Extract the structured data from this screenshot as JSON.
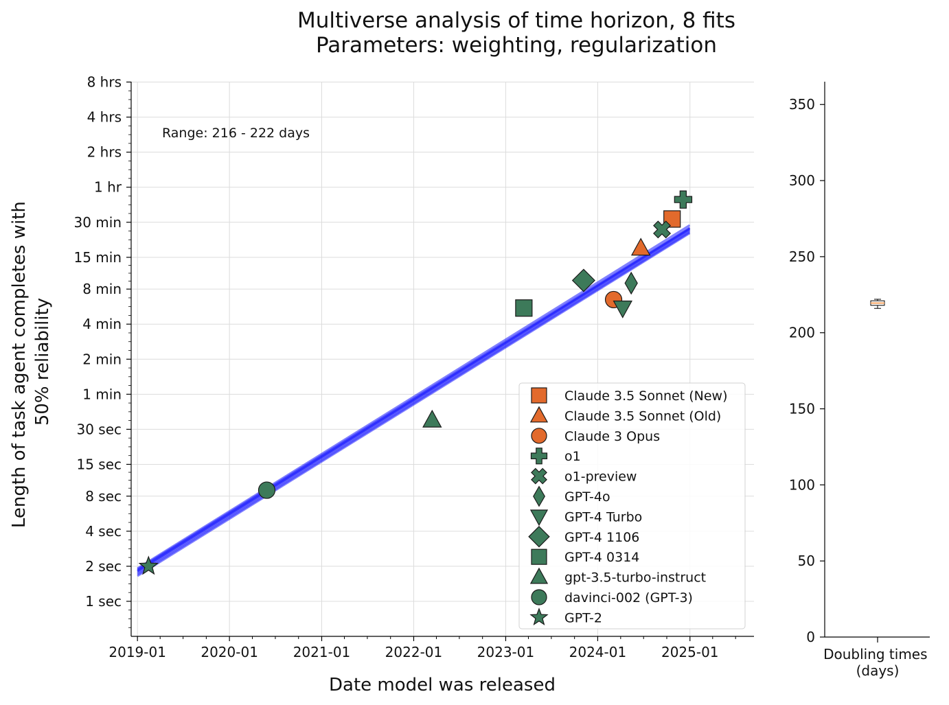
{
  "chart_data": [
    {
      "type": "scatter",
      "title": "Multiverse analysis of time horizon, 8 fits",
      "subtitle": "Parameters: weighting, regularization",
      "xlabel": "Date model was released",
      "ylabel": "Length of task agent completes with 50% reliability",
      "y_scale": "log",
      "grid": true,
      "legend_position": "bottom-right",
      "annotation": "Range: 216 - 222 days",
      "x_ticks": [
        "2019-01",
        "2020-01",
        "2021-01",
        "2022-01",
        "2023-01",
        "2024-01",
        "2025-01"
      ],
      "y_ticks": [
        {
          "label": "1 sec",
          "seconds": 1
        },
        {
          "label": "2 sec",
          "seconds": 2
        },
        {
          "label": "4 sec",
          "seconds": 4
        },
        {
          "label": "8 sec",
          "seconds": 8
        },
        {
          "label": "15 sec",
          "seconds": 15
        },
        {
          "label": "30 sec",
          "seconds": 30
        },
        {
          "label": "1 min",
          "seconds": 60
        },
        {
          "label": "2 min",
          "seconds": 120
        },
        {
          "label": "4 min",
          "seconds": 240
        },
        {
          "label": "8 min",
          "seconds": 480
        },
        {
          "label": "15 min",
          "seconds": 900
        },
        {
          "label": "30 min",
          "seconds": 1800
        },
        {
          "label": "1 hr",
          "seconds": 3600
        },
        {
          "label": "2 hrs",
          "seconds": 7200
        },
        {
          "label": "4 hrs",
          "seconds": 14400
        },
        {
          "label": "8 hrs",
          "seconds": 28800
        }
      ],
      "xlim": [
        "2018-12-07",
        "2025-09-12"
      ],
      "ylim_seconds": [
        0.5,
        29000
      ],
      "series": [
        {
          "name": "Claude 3.5 Sonnet (New)",
          "marker": "square",
          "color": "#e26a2c",
          "date": "2024-10-22",
          "seconds": 1920
        },
        {
          "name": "Claude 3.5 Sonnet (Old)",
          "marker": "triangle-up",
          "color": "#e26a2c",
          "date": "2024-06-20",
          "seconds": 1080
        },
        {
          "name": "Claude 3 Opus",
          "marker": "circle",
          "color": "#e26a2c",
          "date": "2024-03-04",
          "seconds": 390
        },
        {
          "name": "o1",
          "marker": "plus",
          "color": "#3d7a5a",
          "date": "2024-12-05",
          "seconds": 2820
        },
        {
          "name": "o1-preview",
          "marker": "x",
          "color": "#3d7a5a",
          "date": "2024-09-12",
          "seconds": 1560
        },
        {
          "name": "GPT-4o",
          "marker": "thin-diamond",
          "color": "#3d7a5a",
          "date": "2024-05-13",
          "seconds": 540
        },
        {
          "name": "GPT-4 Turbo",
          "marker": "triangle-down",
          "color": "#3d7a5a",
          "date": "2024-04-09",
          "seconds": 330
        },
        {
          "name": "GPT-4 1106",
          "marker": "diamond",
          "color": "#3d7a5a",
          "date": "2023-11-06",
          "seconds": 570
        },
        {
          "name": "GPT-4 0314",
          "marker": "square",
          "color": "#3d7a5a",
          "date": "2023-03-14",
          "seconds": 330
        },
        {
          "name": "gpt-3.5-turbo-instruct",
          "marker": "triangle-up",
          "color": "#3d7a5a",
          "date": "2022-03-15",
          "seconds": 36
        },
        {
          "name": "davinci-002 (GPT-3)",
          "marker": "circle",
          "color": "#3d7a5a",
          "date": "2020-05-28",
          "seconds": 9
        },
        {
          "name": "GPT-2",
          "marker": "star",
          "color": "#3d7a5a",
          "date": "2019-02-14",
          "seconds": 2
        }
      ],
      "fit_lines": {
        "color": "#1a1aff",
        "count": 8,
        "x_range": [
          "2019-01-01",
          "2024-12-31"
        ],
        "start_seconds": [
          1.82,
          1.88,
          1.75,
          1.7,
          1.92,
          1.8,
          1.85,
          1.65
        ],
        "end_seconds": [
          1580,
          1620,
          1520,
          1480,
          1700,
          1560,
          1600,
          1450
        ]
      }
    },
    {
      "type": "box",
      "xlabel": "Doubling times\n(days)",
      "ylim": [
        0,
        365
      ],
      "y_ticks": [
        0,
        50,
        100,
        150,
        200,
        250,
        300,
        350
      ],
      "box": {
        "min": 216,
        "q1": 218,
        "median": 219.5,
        "q3": 221,
        "max": 222,
        "color": "#f5a25d"
      }
    }
  ]
}
